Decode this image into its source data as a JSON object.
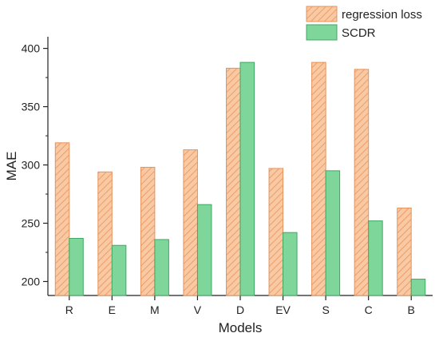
{
  "chart_data": {
    "type": "bar",
    "title": "",
    "xlabel": "Models",
    "ylabel": "MAE",
    "categories": [
      "R",
      "E",
      "M",
      "V",
      "D",
      "EV",
      "S",
      "C",
      "B"
    ],
    "series": [
      {
        "name": "regression loss",
        "values": [
          319,
          294,
          298,
          313,
          383,
          297,
          388,
          382,
          263
        ],
        "color": "#F9C9A3",
        "edge_color": "#E8925A",
        "pattern": "diagonal-hatch"
      },
      {
        "name": "SCDR",
        "values": [
          237,
          231,
          236,
          266,
          388,
          242,
          295,
          252,
          202
        ],
        "color": "#7ED69A",
        "edge_color": "#3FA862",
        "pattern": "solid"
      }
    ],
    "ylim": [
      188,
      410
    ],
    "yticks": [
      200,
      250,
      300,
      350,
      400
    ],
    "grid": false,
    "legend": "top-right"
  }
}
